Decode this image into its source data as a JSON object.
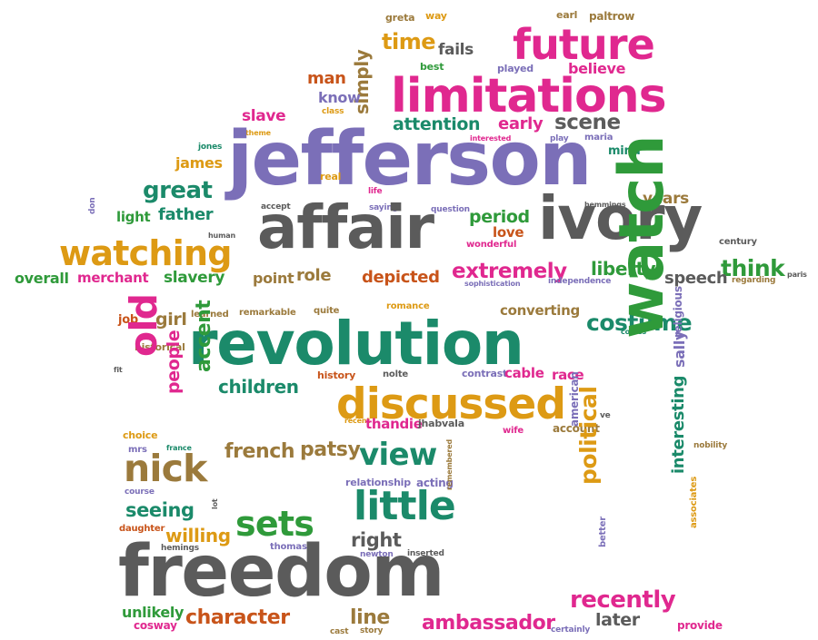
{
  "palette": {
    "magenta": "#e0288f",
    "purple": "#7b6fb8",
    "green": "#2f9a3a",
    "teal": "#1b8a6a",
    "orange": "#dd9a14",
    "gray": "#5b5b5b",
    "brown": "#9b7a3c",
    "rust": "#c8541a"
  },
  "words": [
    {
      "text": "greta",
      "color": "brown"
    },
    {
      "text": "way",
      "color": "orange"
    },
    {
      "text": "earl",
      "color": "brown"
    },
    {
      "text": "paltrow",
      "color": "brown"
    },
    {
      "text": "time",
      "color": "orange"
    },
    {
      "text": "fails",
      "color": "gray"
    },
    {
      "text": "future",
      "color": "magenta"
    },
    {
      "text": "best",
      "color": "green"
    },
    {
      "text": "played",
      "color": "purple"
    },
    {
      "text": "believe",
      "color": "magenta"
    },
    {
      "text": "simply",
      "color": "brown"
    },
    {
      "text": "man",
      "color": "rust"
    },
    {
      "text": "limitations",
      "color": "magenta"
    },
    {
      "text": "know",
      "color": "purple"
    },
    {
      "text": "class",
      "color": "orange"
    },
    {
      "text": "slave",
      "color": "magenta"
    },
    {
      "text": "attention",
      "color": "teal"
    },
    {
      "text": "early",
      "color": "magenta"
    },
    {
      "text": "scene",
      "color": "gray"
    },
    {
      "text": "theme",
      "color": "orange"
    },
    {
      "text": "interested",
      "color": "magenta"
    },
    {
      "text": "play",
      "color": "purple"
    },
    {
      "text": "maria",
      "color": "purple"
    },
    {
      "text": "jones",
      "color": "teal"
    },
    {
      "text": "jefferson",
      "color": "purple"
    },
    {
      "text": "mind",
      "color": "teal"
    },
    {
      "text": "james",
      "color": "orange"
    },
    {
      "text": "real",
      "color": "orange"
    },
    {
      "text": "great",
      "color": "teal"
    },
    {
      "text": "life",
      "color": "magenta"
    },
    {
      "text": "years",
      "color": "brown"
    },
    {
      "text": "hemmings",
      "color": "gray"
    },
    {
      "text": "accept",
      "color": "gray"
    },
    {
      "text": "saying",
      "color": "purple"
    },
    {
      "text": "question",
      "color": "purple"
    },
    {
      "text": "don",
      "color": "purple"
    },
    {
      "text": "light",
      "color": "green"
    },
    {
      "text": "father",
      "color": "teal"
    },
    {
      "text": "period",
      "color": "green"
    },
    {
      "text": "ivory",
      "color": "gray"
    },
    {
      "text": "human",
      "color": "gray"
    },
    {
      "text": "affair",
      "color": "gray"
    },
    {
      "text": "love",
      "color": "rust"
    },
    {
      "text": "wonderful",
      "color": "magenta"
    },
    {
      "text": "century",
      "color": "gray"
    },
    {
      "text": "watching",
      "color": "orange"
    },
    {
      "text": "extremely",
      "color": "magenta"
    },
    {
      "text": "liberty",
      "color": "green"
    },
    {
      "text": "think",
      "color": "green"
    },
    {
      "text": "overall",
      "color": "green"
    },
    {
      "text": "merchant",
      "color": "magenta"
    },
    {
      "text": "slavery",
      "color": "green"
    },
    {
      "text": "point",
      "color": "brown"
    },
    {
      "text": "role",
      "color": "brown"
    },
    {
      "text": "depicted",
      "color": "rust"
    },
    {
      "text": "sophistication",
      "color": "purple"
    },
    {
      "text": "independence",
      "color": "purple"
    },
    {
      "text": "speech",
      "color": "gray"
    },
    {
      "text": "regarding",
      "color": "brown"
    },
    {
      "text": "paris",
      "color": "gray"
    },
    {
      "text": "job",
      "color": "rust"
    },
    {
      "text": "girl",
      "color": "brown"
    },
    {
      "text": "learned",
      "color": "brown"
    },
    {
      "text": "remarkable",
      "color": "brown"
    },
    {
      "text": "quite",
      "color": "brown"
    },
    {
      "text": "romance",
      "color": "orange"
    },
    {
      "text": "converting",
      "color": "brown"
    },
    {
      "text": "costume",
      "color": "teal"
    },
    {
      "text": "comes",
      "color": "teal"
    },
    {
      "text": "historical",
      "color": "brown"
    },
    {
      "text": "revolution",
      "color": "teal"
    },
    {
      "text": "old",
      "color": "magenta"
    },
    {
      "text": "fit",
      "color": "gray"
    },
    {
      "text": "people",
      "color": "magenta"
    },
    {
      "text": "accent",
      "color": "green"
    },
    {
      "text": "children",
      "color": "teal"
    },
    {
      "text": "history",
      "color": "rust"
    },
    {
      "text": "nolte",
      "color": "gray"
    },
    {
      "text": "contrast",
      "color": "purple"
    },
    {
      "text": "cable",
      "color": "magenta"
    },
    {
      "text": "race",
      "color": "magenta"
    },
    {
      "text": "discussed",
      "color": "orange"
    },
    {
      "text": "watch",
      "color": "green"
    },
    {
      "text": "religious",
      "color": "purple"
    },
    {
      "text": "sally",
      "color": "purple"
    },
    {
      "text": "ve",
      "color": "gray"
    },
    {
      "text": "recent",
      "color": "orange"
    },
    {
      "text": "thandie",
      "color": "magenta"
    },
    {
      "text": "jhabvala",
      "color": "gray"
    },
    {
      "text": "wife",
      "color": "magenta"
    },
    {
      "text": "account",
      "color": "brown"
    },
    {
      "text": "choice",
      "color": "orange"
    },
    {
      "text": "mrs",
      "color": "purple"
    },
    {
      "text": "france",
      "color": "teal"
    },
    {
      "text": "american",
      "color": "purple"
    },
    {
      "text": "nobility",
      "color": "brown"
    },
    {
      "text": "nick",
      "color": "brown"
    },
    {
      "text": "french",
      "color": "brown"
    },
    {
      "text": "patsy",
      "color": "brown"
    },
    {
      "text": "view",
      "color": "teal"
    },
    {
      "text": "relationship",
      "color": "purple"
    },
    {
      "text": "acting",
      "color": "purple"
    },
    {
      "text": "course",
      "color": "purple"
    },
    {
      "text": "little",
      "color": "teal"
    },
    {
      "text": "seeing",
      "color": "teal"
    },
    {
      "text": "daughter",
      "color": "rust"
    },
    {
      "text": "lot",
      "color": "gray"
    },
    {
      "text": "sets",
      "color": "green"
    },
    {
      "text": "remembered",
      "color": "brown"
    },
    {
      "text": "willing",
      "color": "orange"
    },
    {
      "text": "hemings",
      "color": "gray"
    },
    {
      "text": "thomas",
      "color": "purple"
    },
    {
      "text": "newton",
      "color": "purple"
    },
    {
      "text": "inserted",
      "color": "gray"
    },
    {
      "text": "right",
      "color": "gray"
    },
    {
      "text": "political",
      "color": "orange"
    },
    {
      "text": "better",
      "color": "purple"
    },
    {
      "text": "interesting",
      "color": "teal"
    },
    {
      "text": "associates",
      "color": "orange"
    },
    {
      "text": "freedom",
      "color": "gray"
    },
    {
      "text": "recently",
      "color": "magenta"
    },
    {
      "text": "unlikely",
      "color": "green"
    },
    {
      "text": "character",
      "color": "rust"
    },
    {
      "text": "line",
      "color": "brown"
    },
    {
      "text": "cosway",
      "color": "magenta"
    },
    {
      "text": "cast",
      "color": "brown"
    },
    {
      "text": "story",
      "color": "brown"
    },
    {
      "text": "ambassador",
      "color": "magenta"
    },
    {
      "text": "later",
      "color": "gray"
    },
    {
      "text": "certainly",
      "color": "purple"
    },
    {
      "text": "provide",
      "color": "magenta"
    }
  ]
}
